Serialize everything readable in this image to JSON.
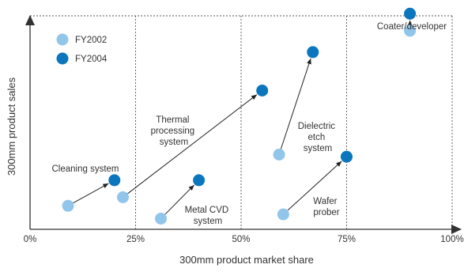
{
  "chart_data": {
    "type": "scatter",
    "xlabel": "300mm product market share",
    "ylabel": "300mm product sales",
    "xlim": [
      0,
      100
    ],
    "ylim": [
      0,
      100
    ],
    "x_ticks": [
      "0%",
      "25%",
      "50%",
      "75%",
      "100%"
    ],
    "x_tick_values": [
      0,
      25,
      50,
      75,
      100
    ],
    "grid": "vertical dotted lines at 25%, 50%, 75%, 100%; dotted top border",
    "y_ticks": "none",
    "legend_position": "top-left",
    "series": [
      {
        "name": "FY2002",
        "color": "#92c5ea"
      },
      {
        "name": "FY2004",
        "color": "#0b76bd"
      }
    ],
    "products": [
      {
        "label": "Cleaning system",
        "fy2002": [
          9,
          11
        ],
        "fy2004": [
          20,
          23
        ]
      },
      {
        "label": "Thermal processing system",
        "fy2002": [
          22,
          15
        ],
        "fy2004": [
          55,
          65
        ]
      },
      {
        "label": "Metal CVD system",
        "fy2002": [
          31,
          5
        ],
        "fy2004": [
          40,
          23
        ]
      },
      {
        "label": "Dielectric etch system",
        "fy2002": [
          59,
          35
        ],
        "fy2004": [
          67,
          83
        ]
      },
      {
        "label": "Wafer prober",
        "fy2002": [
          60,
          7
        ],
        "fy2004": [
          75,
          34
        ]
      },
      {
        "label": "Coater/developer",
        "fy2002": [
          90,
          93
        ],
        "fy2004": [
          90,
          101
        ]
      }
    ]
  }
}
